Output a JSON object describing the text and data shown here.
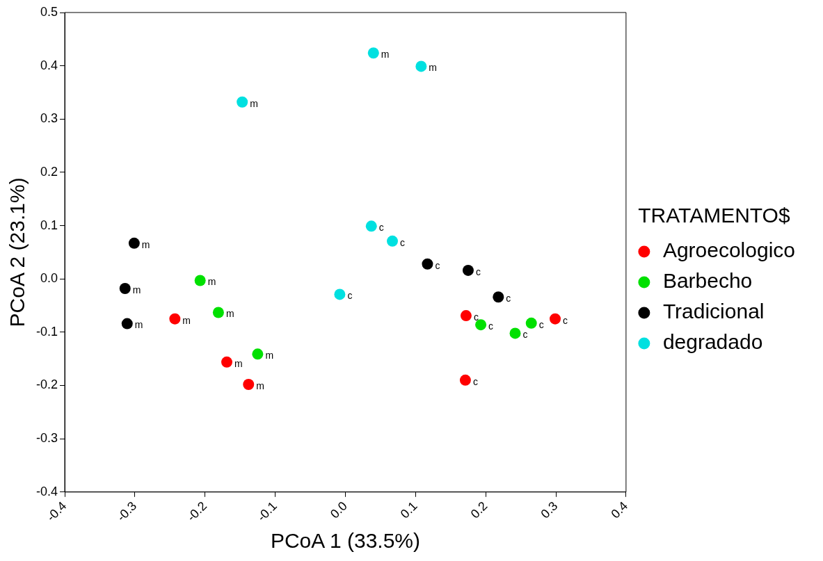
{
  "chart_data": {
    "type": "scatter",
    "xlabel": "PCoA 1 (33.5%)",
    "ylabel": "PCoA 2 (23.1%)",
    "legend_title": "TRATAMENTO$",
    "legend": "right",
    "marker": "circle",
    "grid": false,
    "xlim": [
      -0.4,
      0.4
    ],
    "xticks": [
      -0.4,
      -0.3,
      -0.2,
      -0.1,
      {
        "value": 0,
        "label": "0.0"
      },
      0.1,
      0.2,
      0.3,
      0.4
    ],
    "ylim": [
      -0.4,
      0.5
    ],
    "yticks": [
      -0.4,
      -0.3,
      -0.2,
      -0.1,
      {
        "value": 0,
        "label": "0.0"
      },
      0.1,
      0.2,
      0.3,
      0.4,
      0.5
    ],
    "series": [
      {
        "name": "Agroecologico",
        "color": "#ff0000",
        "x": [
          -0.243,
          -0.169,
          -0.138,
          0.172,
          0.171,
          0.299
        ],
        "values": [
          -0.075,
          -0.156,
          -0.198,
          -0.069,
          -0.19,
          -0.075
        ],
        "value_labels": [
          "m",
          "m",
          "m",
          "c",
          "c",
          "c"
        ]
      },
      {
        "name": "Barbecho",
        "color": "#00e000",
        "x": [
          -0.207,
          -0.181,
          -0.125,
          0.193,
          0.242,
          0.265
        ],
        "values": [
          -0.003,
          -0.063,
          -0.141,
          -0.086,
          -0.102,
          -0.083
        ],
        "value_labels": [
          "m",
          "m",
          "m",
          "c",
          "c",
          "c"
        ]
      },
      {
        "name": "Tradicional",
        "color": "#000000",
        "x": [
          -0.301,
          -0.314,
          -0.311,
          0.117,
          0.175,
          0.218
        ],
        "values": [
          0.067,
          -0.018,
          -0.084,
          0.028,
          0.016,
          -0.034
        ],
        "value_labels": [
          "m",
          "m",
          "m",
          "c",
          "c",
          "c"
        ]
      },
      {
        "name": "degradado",
        "color": "#00e0e0",
        "x": [
          0.04,
          0.108,
          -0.147,
          0.037,
          0.067,
          -0.008
        ],
        "values": [
          0.424,
          0.399,
          0.332,
          0.099,
          0.071,
          -0.029
        ],
        "value_labels": [
          "m",
          "m",
          "m",
          "c",
          "c",
          "c"
        ]
      }
    ]
  }
}
